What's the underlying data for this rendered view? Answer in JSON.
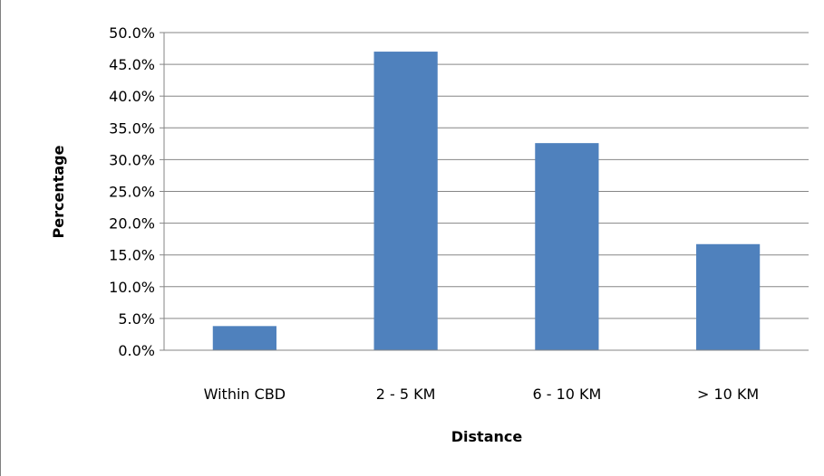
{
  "chart_data": {
    "type": "bar",
    "title": "",
    "xlabel": "Distance",
    "ylabel": "Percentage",
    "categories": [
      "Within CBD",
      "2 - 5 KM",
      "6 - 10 KM",
      "> 10 KM"
    ],
    "values": [
      3.8,
      47.0,
      32.6,
      16.7
    ],
    "ylim": [
      0,
      50
    ],
    "ystep": 5,
    "ytick_labels": [
      "0.0%",
      "5.0%",
      "10.0%",
      "15.0%",
      "20.0%",
      "25.0%",
      "30.0%",
      "35.0%",
      "40.0%",
      "45.0%",
      "50.0%"
    ],
    "grid": true,
    "legend": "none",
    "bar_color": "#4F81BD",
    "grid_color": "#868686"
  }
}
